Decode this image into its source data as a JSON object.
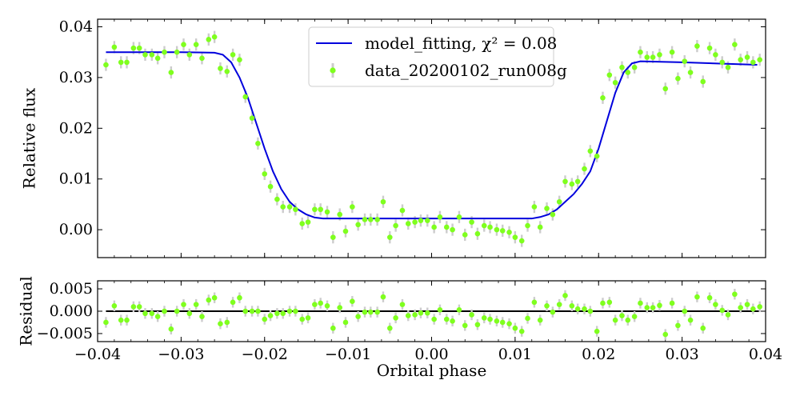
{
  "chart_data": [
    {
      "type": "scatter",
      "panel": "main",
      "xlabel": "",
      "ylabel": "Relative flux",
      "xlim": [
        -0.04,
        0.04
      ],
      "ylim": [
        -0.0055,
        0.0415
      ],
      "x_ticks": [
        -0.04,
        -0.03,
        -0.02,
        -0.01,
        0.0,
        0.01,
        0.02,
        0.03,
        0.04
      ],
      "y_ticks": [
        0.0,
        0.01,
        0.02,
        0.03,
        0.04
      ],
      "y_tick_labels": [
        "0.00",
        "0.01",
        "0.02",
        "0.03",
        "0.04"
      ],
      "legend_position": "top-center",
      "series": [
        {
          "name": "model_fitting, χ² = 0.08",
          "kind": "line",
          "color": "#0000dd",
          "x": [
            -0.039,
            -0.03,
            -0.026,
            -0.025,
            -0.024,
            -0.023,
            -0.022,
            -0.021,
            -0.02,
            -0.019,
            -0.018,
            -0.017,
            -0.016,
            -0.015,
            -0.014,
            -0.013,
            -0.01,
            0.0,
            0.01,
            0.012,
            0.013,
            0.014,
            0.015,
            0.016,
            0.017,
            0.018,
            0.019,
            0.02,
            0.021,
            0.022,
            0.023,
            0.024,
            0.025,
            0.03,
            0.039
          ],
          "y": [
            0.035,
            0.035,
            0.0349,
            0.0345,
            0.033,
            0.03,
            0.026,
            0.021,
            0.016,
            0.0115,
            0.008,
            0.0055,
            0.004,
            0.003,
            0.0024,
            0.0022,
            0.0022,
            0.0022,
            0.0022,
            0.0022,
            0.0025,
            0.003,
            0.004,
            0.0055,
            0.007,
            0.009,
            0.0115,
            0.016,
            0.0215,
            0.027,
            0.031,
            0.0328,
            0.0332,
            0.033,
            0.0325
          ]
        },
        {
          "name": "data_20200102_run008g",
          "kind": "errorbar",
          "color": "#7fff1e",
          "errcolor": "#cccccc",
          "yerr": 0.0012,
          "x": [
            -0.039,
            -0.038,
            -0.0372,
            -0.0365,
            -0.0357,
            -0.035,
            -0.0343,
            -0.0335,
            -0.0328,
            -0.032,
            -0.0312,
            -0.0305,
            -0.0297,
            -0.029,
            -0.0282,
            -0.0275,
            -0.0267,
            -0.026,
            -0.0253,
            -0.0245,
            -0.0238,
            -0.023,
            -0.0223,
            -0.0215,
            -0.0208,
            -0.02,
            -0.0193,
            -0.0185,
            -0.0178,
            -0.017,
            -0.0163,
            -0.0155,
            -0.0148,
            -0.014,
            -0.0133,
            -0.0125,
            -0.0118,
            -0.011,
            -0.0103,
            -0.0095,
            -0.0088,
            -0.008,
            -0.0073,
            -0.0065,
            -0.0058,
            -0.005,
            -0.0043,
            -0.0035,
            -0.0028,
            -0.002,
            -0.0013,
            -0.0005,
            0.0003,
            0.001,
            0.0018,
            0.0025,
            0.0033,
            0.004,
            0.0048,
            0.0055,
            0.0063,
            0.007,
            0.0078,
            0.0085,
            0.0093,
            0.01,
            0.0108,
            0.0115,
            0.0123,
            0.013,
            0.0138,
            0.0145,
            0.0153,
            0.016,
            0.0168,
            0.0175,
            0.0183,
            0.019,
            0.0198,
            0.0205,
            0.0213,
            0.022,
            0.0228,
            0.0235,
            0.0243,
            0.025,
            0.0258,
            0.0265,
            0.0273,
            0.028,
            0.0288,
            0.0295,
            0.0303,
            0.031,
            0.0318,
            0.0325,
            0.0333,
            0.034,
            0.0348,
            0.0355,
            0.0363,
            0.037,
            0.0378,
            0.0385,
            0.0393
          ],
          "y": [
            0.0325,
            0.036,
            0.033,
            0.033,
            0.0358,
            0.0358,
            0.0345,
            0.0345,
            0.0338,
            0.035,
            0.031,
            0.035,
            0.0365,
            0.0345,
            0.0365,
            0.0338,
            0.0375,
            0.038,
            0.0318,
            0.0312,
            0.0345,
            0.0335,
            0.0262,
            0.022,
            0.017,
            0.011,
            0.0085,
            0.006,
            0.0045,
            0.0045,
            0.004,
            0.0012,
            0.0015,
            0.004,
            0.004,
            0.0035,
            -0.0015,
            0.003,
            -0.0003,
            0.0045,
            0.001,
            0.002,
            0.002,
            0.002,
            0.0055,
            -0.0015,
            0.0008,
            0.0038,
            0.0012,
            0.0015,
            0.0018,
            0.0018,
            0.0005,
            0.0025,
            0.0005,
            0.0,
            0.0025,
            -0.001,
            0.0015,
            -0.0008,
            0.0008,
            0.0005,
            0.0,
            -0.0002,
            -0.0005,
            -0.0015,
            -0.0022,
            0.0008,
            0.0045,
            0.0005,
            0.0042,
            0.003,
            0.0055,
            0.0095,
            0.009,
            0.0095,
            0.012,
            0.0155,
            0.0145,
            0.026,
            0.0305,
            0.029,
            0.032,
            0.031,
            0.032,
            0.035,
            0.034,
            0.034,
            0.0345,
            0.0278,
            0.035,
            0.0298,
            0.0332,
            0.031,
            0.0362,
            0.0292,
            0.0358,
            0.0345,
            0.033,
            0.032,
            0.0365,
            0.0335,
            0.034,
            0.033,
            0.0335
          ]
        }
      ]
    },
    {
      "type": "scatter",
      "panel": "residual",
      "xlabel": "Orbital phase",
      "ylabel": "Residual",
      "xlim": [
        -0.04,
        0.04
      ],
      "ylim": [
        -0.0068,
        0.0068
      ],
      "x_ticks": [
        -0.04,
        -0.03,
        -0.02,
        -0.01,
        0.0,
        0.01,
        0.02,
        0.03,
        0.04
      ],
      "x_tick_labels": [
        "−0.04",
        "−0.03",
        "−0.02",
        "−0.01",
        "0.00",
        "0.01",
        "0.02",
        "0.03",
        "0.04"
      ],
      "y_ticks": [
        -0.005,
        0.0,
        0.005
      ],
      "y_tick_labels": [
        "−0.005",
        "0.000",
        "0.005"
      ],
      "zero_line": 0,
      "series": [
        {
          "name": "",
          "kind": "errorbar",
          "color": "#7fff1e",
          "errcolor": "#cccccc",
          "yerr": 0.0012,
          "x": [
            -0.039,
            -0.038,
            -0.0372,
            -0.0365,
            -0.0357,
            -0.035,
            -0.0343,
            -0.0335,
            -0.0328,
            -0.032,
            -0.0312,
            -0.0305,
            -0.0297,
            -0.029,
            -0.0282,
            -0.0275,
            -0.0267,
            -0.026,
            -0.0253,
            -0.0245,
            -0.0238,
            -0.023,
            -0.0223,
            -0.0215,
            -0.0208,
            -0.02,
            -0.0193,
            -0.0185,
            -0.0178,
            -0.017,
            -0.0163,
            -0.0155,
            -0.0148,
            -0.014,
            -0.0133,
            -0.0125,
            -0.0118,
            -0.011,
            -0.0103,
            -0.0095,
            -0.0088,
            -0.008,
            -0.0073,
            -0.0065,
            -0.0058,
            -0.005,
            -0.0043,
            -0.0035,
            -0.0028,
            -0.002,
            -0.0013,
            -0.0005,
            0.0003,
            0.001,
            0.0018,
            0.0025,
            0.0033,
            0.004,
            0.0048,
            0.0055,
            0.0063,
            0.007,
            0.0078,
            0.0085,
            0.0093,
            0.01,
            0.0108,
            0.0115,
            0.0123,
            0.013,
            0.0138,
            0.0145,
            0.0153,
            0.016,
            0.0168,
            0.0175,
            0.0183,
            0.019,
            0.0198,
            0.0205,
            0.0213,
            0.022,
            0.0228,
            0.0235,
            0.0243,
            0.025,
            0.0258,
            0.0265,
            0.0273,
            0.028,
            0.0288,
            0.0295,
            0.0303,
            0.031,
            0.0318,
            0.0325,
            0.0333,
            0.034,
            0.0348,
            0.0355,
            0.0363,
            0.037,
            0.0378,
            0.0385,
            0.0393
          ],
          "y": [
            -0.0025,
            0.0012,
            -0.002,
            -0.002,
            0.001,
            0.001,
            -0.0005,
            -0.0005,
            -0.0012,
            0.0,
            -0.004,
            0.0,
            0.0015,
            -0.0005,
            0.0015,
            -0.0012,
            0.0025,
            0.003,
            -0.0028,
            -0.0025,
            0.002,
            0.003,
            0.0,
            0.0,
            0.0,
            -0.0018,
            -0.001,
            -0.0005,
            -0.0005,
            0.0,
            0.0,
            -0.0018,
            -0.0015,
            0.0015,
            0.0018,
            0.0012,
            -0.0038,
            0.0008,
            -0.0025,
            0.0022,
            -0.0012,
            -0.0002,
            -0.0002,
            -0.0002,
            0.0032,
            -0.0038,
            -0.0015,
            0.0015,
            -0.001,
            -0.0008,
            -0.0004,
            -0.0004,
            -0.0018,
            0.0003,
            -0.0018,
            -0.0022,
            0.0003,
            -0.0032,
            -0.0008,
            -0.003,
            -0.0015,
            -0.0018,
            -0.0022,
            -0.0025,
            -0.0028,
            -0.0038,
            -0.0045,
            -0.0016,
            0.002,
            -0.002,
            0.0012,
            -0.0002,
            0.0015,
            0.0035,
            0.0012,
            0.0005,
            0.0005,
            0.0,
            -0.0045,
            0.0018,
            0.002,
            -0.002,
            -0.001,
            -0.002,
            -0.0012,
            0.0018,
            0.0008,
            0.0008,
            0.0013,
            -0.0052,
            0.0018,
            -0.0032,
            0.0,
            -0.002,
            0.0032,
            -0.0038,
            0.003,
            0.0015,
            0.0002,
            -0.0008,
            0.0038,
            0.0008,
            0.0015,
            0.0005,
            0.001
          ]
        }
      ]
    }
  ]
}
